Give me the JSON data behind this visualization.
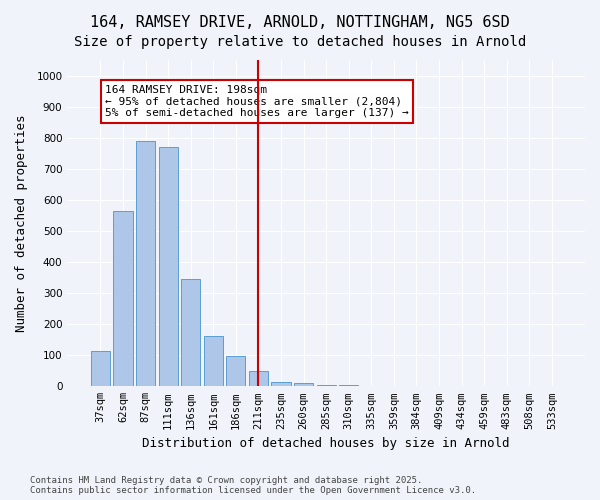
{
  "title1": "164, RAMSEY DRIVE, ARNOLD, NOTTINGHAM, NG5 6SD",
  "title2": "Size of property relative to detached houses in Arnold",
  "xlabel": "Distribution of detached houses by size in Arnold",
  "ylabel": "Number of detached properties",
  "categories": [
    "37sqm",
    "62sqm",
    "87sqm",
    "111sqm",
    "136sqm",
    "161sqm",
    "186sqm",
    "211sqm",
    "235sqm",
    "260sqm",
    "285sqm",
    "310sqm",
    "335sqm",
    "359sqm",
    "384sqm",
    "409sqm",
    "434sqm",
    "459sqm",
    "483sqm",
    "508sqm",
    "533sqm"
  ],
  "values": [
    112,
    565,
    790,
    770,
    345,
    162,
    97,
    50,
    15,
    10,
    5,
    5,
    2,
    2,
    0,
    0,
    0,
    0,
    0,
    2,
    2
  ],
  "bar_color": "#aec6e8",
  "bar_edge_color": "#5a9fd4",
  "vline_x": 7,
  "vline_color": "#cc0000",
  "annotation_text": "164 RAMSEY DRIVE: 198sqm\n← 95% of detached houses are smaller (2,804)\n5% of semi-detached houses are larger (137) →",
  "annotation_box_color": "white",
  "annotation_box_edge_color": "#cc0000",
  "background_color": "#f0f4fa",
  "grid_color": "white",
  "footer": "Contains HM Land Registry data © Crown copyright and database right 2025.\nContains public sector information licensed under the Open Government Licence v3.0.",
  "ylim": [
    0,
    1050
  ],
  "title1_fontsize": 11,
  "title2_fontsize": 10,
  "xlabel_fontsize": 9,
  "ylabel_fontsize": 9,
  "tick_fontsize": 7.5,
  "annotation_fontsize": 8
}
